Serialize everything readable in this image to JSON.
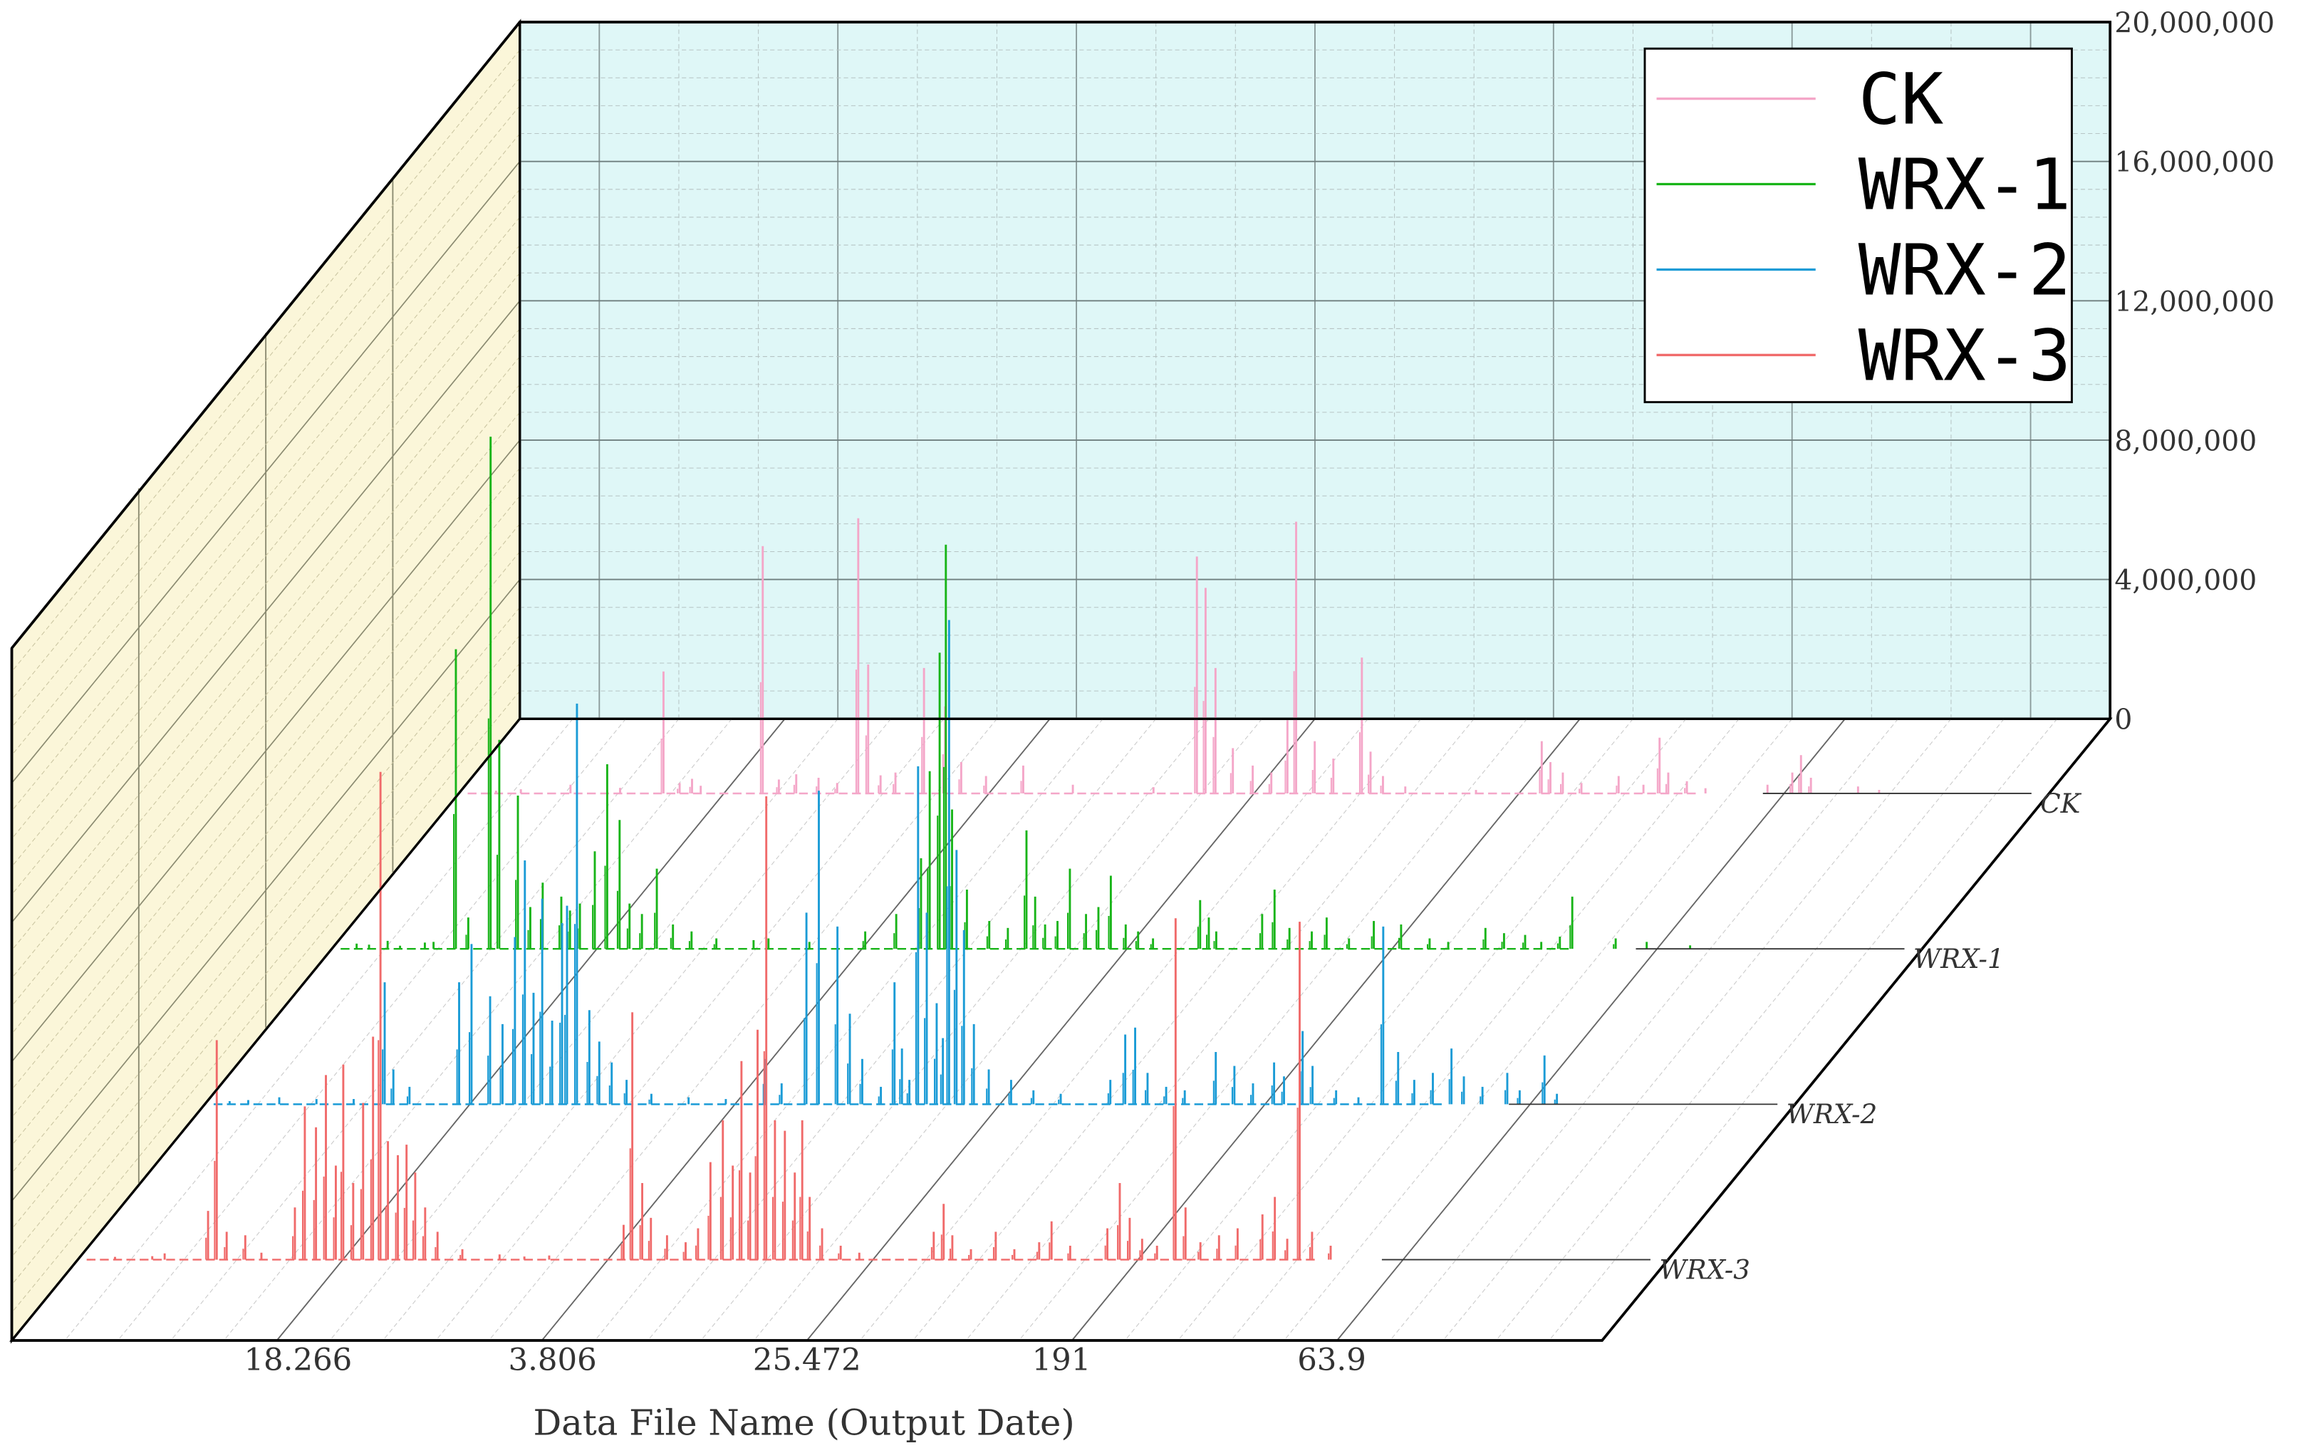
{
  "chart_data": {
    "type": "line",
    "subtype": "3d-waterfall",
    "title": "",
    "xlabel": "Data File Name (Output Date)",
    "ylabel": "",
    "zlabel": "",
    "x_tick_labels": [
      "18.266",
      "3.806",
      "25.472",
      "191",
      "63.9"
    ],
    "z_tick_labels": [
      "0",
      "4,000,000",
      "8,000,000",
      "12,000,000",
      "16,000,000",
      "20,000,000"
    ],
    "zlim": [
      0,
      20000000
    ],
    "xlim": [
      0,
      1
    ],
    "grid": true,
    "legend_position": "top-right",
    "legend": [
      "CK",
      "WRX-1",
      "WRX-2",
      "WRX-3"
    ],
    "series": [
      {
        "name": "CK",
        "color": "#f4a6c8",
        "peaks": [
          [
            0.03,
            80000
          ],
          [
            0.05,
            120000
          ],
          [
            0.09,
            250000
          ],
          [
            0.13,
            160000
          ],
          [
            0.165,
            3500000
          ],
          [
            0.178,
            300000
          ],
          [
            0.188,
            420000
          ],
          [
            0.195,
            220000
          ],
          [
            0.245,
            7100000
          ],
          [
            0.258,
            400000
          ],
          [
            0.272,
            550000
          ],
          [
            0.29,
            450000
          ],
          [
            0.305,
            300000
          ],
          [
            0.322,
            7900000
          ],
          [
            0.33,
            3700000
          ],
          [
            0.34,
            520000
          ],
          [
            0.352,
            600000
          ],
          [
            0.375,
            3600000
          ],
          [
            0.392,
            2500000
          ],
          [
            0.405,
            900000
          ],
          [
            0.425,
            500000
          ],
          [
            0.455,
            800000
          ],
          [
            0.495,
            250000
          ],
          [
            0.56,
            180000
          ],
          [
            0.595,
            6800000
          ],
          [
            0.602,
            5900000
          ],
          [
            0.61,
            3600000
          ],
          [
            0.624,
            1300000
          ],
          [
            0.64,
            800000
          ],
          [
            0.655,
            600000
          ],
          [
            0.668,
            2100000
          ],
          [
            0.675,
            7800000
          ],
          [
            0.69,
            1500000
          ],
          [
            0.705,
            1000000
          ],
          [
            0.728,
            3900000
          ],
          [
            0.735,
            1200000
          ],
          [
            0.745,
            500000
          ],
          [
            0.763,
            200000
          ],
          [
            0.82,
            100000
          ],
          [
            0.873,
            1500000
          ],
          [
            0.88,
            900000
          ],
          [
            0.89,
            600000
          ],
          [
            0.905,
            300000
          ],
          [
            0.935,
            500000
          ],
          [
            0.955,
            250000
          ],
          [
            0.968,
            1600000
          ],
          [
            0.975,
            600000
          ],
          [
            0.99,
            350000
          ],
          [
            1.005,
            150000
          ],
          [
            1.055,
            250000
          ],
          [
            1.075,
            600000
          ],
          [
            1.082,
            1100000
          ],
          [
            1.09,
            450000
          ],
          [
            1.128,
            200000
          ],
          [
            1.145,
            100000
          ]
        ]
      },
      {
        "name": "WRX-1",
        "color": "#18b418",
        "peaks": [
          [
            0.02,
            150000
          ],
          [
            0.03,
            120000
          ],
          [
            0.045,
            230000
          ],
          [
            0.055,
            90000
          ],
          [
            0.075,
            180000
          ],
          [
            0.082,
            200000
          ],
          [
            0.1,
            8600000
          ],
          [
            0.11,
            900000
          ],
          [
            0.128,
            14700000
          ],
          [
            0.135,
            6000000
          ],
          [
            0.15,
            4400000
          ],
          [
            0.16,
            1200000
          ],
          [
            0.17,
            1900000
          ],
          [
            0.185,
            1500000
          ],
          [
            0.192,
            1100000
          ],
          [
            0.2,
            1300000
          ],
          [
            0.212,
            2800000
          ],
          [
            0.222,
            5300000
          ],
          [
            0.232,
            3700000
          ],
          [
            0.24,
            1300000
          ],
          [
            0.25,
            1000000
          ],
          [
            0.262,
            2300000
          ],
          [
            0.275,
            700000
          ],
          [
            0.29,
            500000
          ],
          [
            0.31,
            300000
          ],
          [
            0.34,
            250000
          ],
          [
            0.352,
            300000
          ],
          [
            0.385,
            200000
          ],
          [
            0.43,
            500000
          ],
          [
            0.455,
            1000000
          ],
          [
            0.475,
            2600000
          ],
          [
            0.482,
            5100000
          ],
          [
            0.49,
            8500000
          ],
          [
            0.495,
            11600000
          ],
          [
            0.5,
            4000000
          ],
          [
            0.512,
            1700000
          ],
          [
            0.53,
            800000
          ],
          [
            0.545,
            600000
          ],
          [
            0.56,
            3400000
          ],
          [
            0.567,
            1500000
          ],
          [
            0.575,
            700000
          ],
          [
            0.585,
            800000
          ],
          [
            0.595,
            2300000
          ],
          [
            0.608,
            1000000
          ],
          [
            0.618,
            1200000
          ],
          [
            0.628,
            2100000
          ],
          [
            0.64,
            700000
          ],
          [
            0.65,
            500000
          ],
          [
            0.662,
            300000
          ],
          [
            0.7,
            1400000
          ],
          [
            0.707,
            900000
          ],
          [
            0.713,
            500000
          ],
          [
            0.75,
            1000000
          ],
          [
            0.76,
            1700000
          ],
          [
            0.772,
            600000
          ],
          [
            0.79,
            500000
          ],
          [
            0.802,
            900000
          ],
          [
            0.82,
            300000
          ],
          [
            0.84,
            800000
          ],
          [
            0.862,
            700000
          ],
          [
            0.885,
            300000
          ],
          [
            0.9,
            200000
          ],
          [
            0.93,
            600000
          ],
          [
            0.945,
            450000
          ],
          [
            0.962,
            400000
          ],
          [
            0.975,
            200000
          ],
          [
            0.99,
            350000
          ],
          [
            1.0,
            1500000
          ],
          [
            1.035,
            300000
          ],
          [
            1.06,
            200000
          ],
          [
            1.095,
            100000
          ]
        ]
      },
      {
        "name": "WRX-2",
        "color": "#1a9bd6",
        "peaks": [
          [
            0.02,
            90000
          ],
          [
            0.035,
            120000
          ],
          [
            0.06,
            200000
          ],
          [
            0.09,
            150000
          ],
          [
            0.12,
            150000
          ],
          [
            0.145,
            3500000
          ],
          [
            0.152,
            1000000
          ],
          [
            0.165,
            500000
          ],
          [
            0.205,
            3500000
          ],
          [
            0.215,
            4600000
          ],
          [
            0.23,
            3100000
          ],
          [
            0.24,
            2300000
          ],
          [
            0.25,
            4800000
          ],
          [
            0.258,
            7000000
          ],
          [
            0.265,
            3200000
          ],
          [
            0.272,
            5900000
          ],
          [
            0.28,
            2400000
          ],
          [
            0.288,
            5200000
          ],
          [
            0.292,
            5700000
          ],
          [
            0.3,
            11500000
          ],
          [
            0.31,
            2700000
          ],
          [
            0.318,
            1800000
          ],
          [
            0.328,
            1200000
          ],
          [
            0.34,
            700000
          ],
          [
            0.36,
            300000
          ],
          [
            0.39,
            200000
          ],
          [
            0.42,
            150000
          ],
          [
            0.452,
            1300000
          ],
          [
            0.465,
            600000
          ],
          [
            0.485,
            5500000
          ],
          [
            0.495,
            9000000
          ],
          [
            0.51,
            5100000
          ],
          [
            0.52,
            2600000
          ],
          [
            0.53,
            1300000
          ],
          [
            0.545,
            500000
          ],
          [
            0.556,
            3500000
          ],
          [
            0.562,
            1600000
          ],
          [
            0.568,
            700000
          ],
          [
            0.575,
            9700000
          ],
          [
            0.582,
            5500000
          ],
          [
            0.59,
            2900000
          ],
          [
            0.595,
            1900000
          ],
          [
            0.6,
            13900000
          ],
          [
            0.606,
            7300000
          ],
          [
            0.612,
            5000000
          ],
          [
            0.62,
            2300000
          ],
          [
            0.632,
            1000000
          ],
          [
            0.65,
            700000
          ],
          [
            0.668,
            400000
          ],
          [
            0.69,
            300000
          ],
          [
            0.73,
            700000
          ],
          [
            0.742,
            2000000
          ],
          [
            0.75,
            2200000
          ],
          [
            0.76,
            900000
          ],
          [
            0.775,
            500000
          ],
          [
            0.79,
            400000
          ],
          [
            0.815,
            1500000
          ],
          [
            0.83,
            1100000
          ],
          [
            0.845,
            600000
          ],
          [
            0.862,
            1200000
          ],
          [
            0.87,
            800000
          ],
          [
            0.885,
            2100000
          ],
          [
            0.893,
            1100000
          ],
          [
            0.912,
            400000
          ],
          [
            0.93,
            200000
          ],
          [
            0.95,
            5100000
          ],
          [
            0.962,
            1500000
          ],
          [
            0.975,
            700000
          ],
          [
            0.99,
            900000
          ],
          [
            1.005,
            1600000
          ],
          [
            1.015,
            800000
          ],
          [
            1.03,
            500000
          ],
          [
            1.05,
            900000
          ],
          [
            1.06,
            400000
          ],
          [
            1.08,
            1400000
          ],
          [
            1.09,
            300000
          ]
        ]
      },
      {
        "name": "WRX-3",
        "color": "#f06a6a",
        "peaks": [
          [
            0.03,
            80000
          ],
          [
            0.06,
            100000
          ],
          [
            0.07,
            180000
          ],
          [
            0.105,
            1400000
          ],
          [
            0.112,
            6300000
          ],
          [
            0.12,
            800000
          ],
          [
            0.135,
            700000
          ],
          [
            0.148,
            200000
          ],
          [
            0.175,
            1500000
          ],
          [
            0.183,
            4400000
          ],
          [
            0.192,
            3800000
          ],
          [
            0.2,
            5300000
          ],
          [
            0.208,
            2700000
          ],
          [
            0.214,
            5600000
          ],
          [
            0.222,
            2200000
          ],
          [
            0.23,
            4500000
          ],
          [
            0.238,
            6400000
          ],
          [
            0.244,
            14000000
          ],
          [
            0.25,
            3400000
          ],
          [
            0.258,
            3000000
          ],
          [
            0.265,
            3300000
          ],
          [
            0.272,
            2500000
          ],
          [
            0.28,
            1500000
          ],
          [
            0.29,
            800000
          ],
          [
            0.31,
            300000
          ],
          [
            0.34,
            150000
          ],
          [
            0.36,
            90000
          ],
          [
            0.38,
            120000
          ],
          [
            0.44,
            1000000
          ],
          [
            0.447,
            7100000
          ],
          [
            0.455,
            2200000
          ],
          [
            0.462,
            1200000
          ],
          [
            0.475,
            700000
          ],
          [
            0.49,
            500000
          ],
          [
            0.5,
            900000
          ],
          [
            0.51,
            2800000
          ],
          [
            0.52,
            4000000
          ],
          [
            0.528,
            2700000
          ],
          [
            0.535,
            5700000
          ],
          [
            0.542,
            2500000
          ],
          [
            0.548,
            6600000
          ],
          [
            0.555,
            13300000
          ],
          [
            0.562,
            4000000
          ],
          [
            0.57,
            3700000
          ],
          [
            0.578,
            2500000
          ],
          [
            0.584,
            4000000
          ],
          [
            0.59,
            1800000
          ],
          [
            0.6,
            900000
          ],
          [
            0.615,
            400000
          ],
          [
            0.63,
            200000
          ],
          [
            0.69,
            800000
          ],
          [
            0.698,
            1600000
          ],
          [
            0.705,
            700000
          ],
          [
            0.72,
            300000
          ],
          [
            0.74,
            800000
          ],
          [
            0.755,
            300000
          ],
          [
            0.775,
            500000
          ],
          [
            0.785,
            1100000
          ],
          [
            0.8,
            400000
          ],
          [
            0.83,
            900000
          ],
          [
            0.84,
            2200000
          ],
          [
            0.848,
            1200000
          ],
          [
            0.858,
            600000
          ],
          [
            0.87,
            400000
          ],
          [
            0.885,
            9800000
          ],
          [
            0.893,
            1500000
          ],
          [
            0.905,
            500000
          ],
          [
            0.92,
            700000
          ],
          [
            0.935,
            900000
          ],
          [
            0.955,
            1300000
          ],
          [
            0.965,
            1800000
          ],
          [
            0.975,
            600000
          ],
          [
            0.985,
            9700000
          ],
          [
            0.995,
            800000
          ],
          [
            1.01,
            400000
          ]
        ]
      }
    ]
  }
}
